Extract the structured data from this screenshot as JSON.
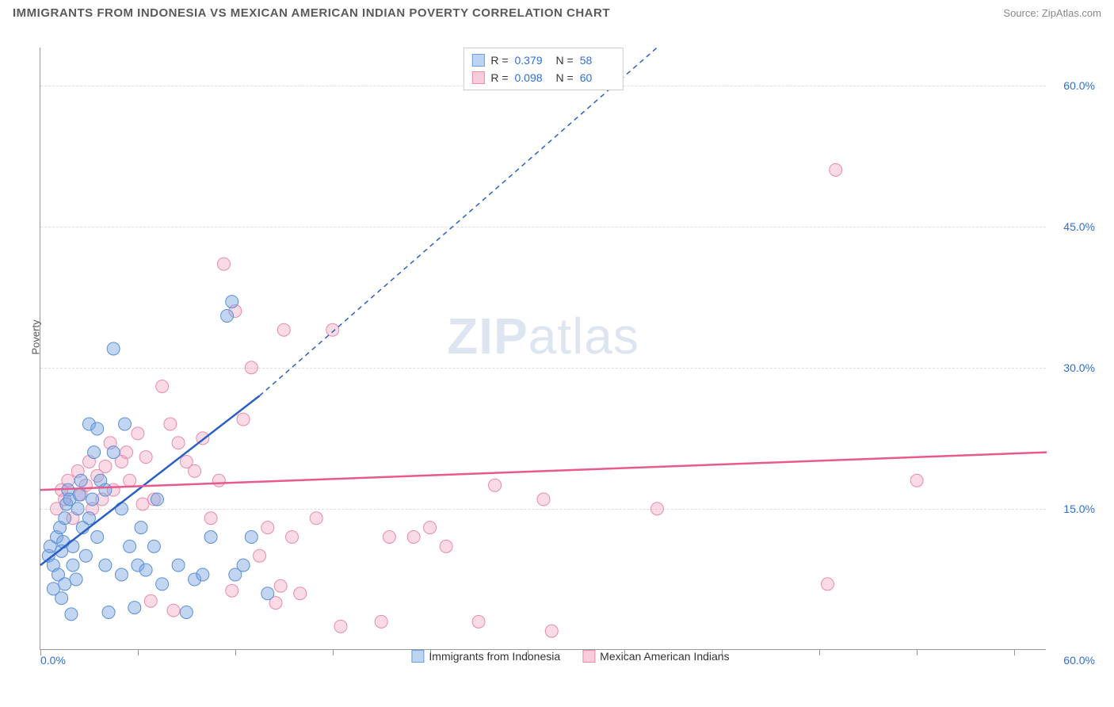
{
  "header": {
    "title": "IMMIGRANTS FROM INDONESIA VS MEXICAN AMERICAN INDIAN POVERTY CORRELATION CHART",
    "source_label": "Source:",
    "source_name": "ZipAtlas.com"
  },
  "watermark": {
    "zip": "ZIP",
    "atlas": "atlas"
  },
  "axes": {
    "ylabel": "Poverty",
    "xlim": [
      0,
      62
    ],
    "ylim": [
      0,
      64
    ],
    "y_ticks": [
      15,
      30,
      45,
      60
    ],
    "y_tick_labels": [
      "15.0%",
      "30.0%",
      "45.0%",
      "60.0%"
    ],
    "x_ticks": [
      0,
      6,
      12,
      18,
      24,
      30,
      36,
      42,
      48,
      54,
      60
    ],
    "x_min_label": "0.0%",
    "x_max_label": "60.0%",
    "grid_color": "#dddddd",
    "axis_color": "#999999"
  },
  "series": [
    {
      "id": "indonesia",
      "label": "Immigrants from Indonesia",
      "color_fill": "rgba(120,165,225,0.45)",
      "color_stroke": "#5a8fd8",
      "swatch_fill": "#bcd4f0",
      "swatch_border": "#6a9fe0",
      "r_label": "R =",
      "r_value": "0.379",
      "n_label": "N =",
      "n_value": "58",
      "marker_radius": 8,
      "trend": {
        "x1": 0,
        "y1": 9,
        "x2": 13.5,
        "y2": 27,
        "stroke": "#2a5fc8",
        "width": 2.5,
        "dash_x2": 38,
        "dash_y2": 64
      },
      "points": [
        [
          0.5,
          10
        ],
        [
          0.6,
          11
        ],
        [
          0.8,
          9
        ],
        [
          1.0,
          12
        ],
        [
          1.1,
          8
        ],
        [
          1.2,
          13
        ],
        [
          1.3,
          10.5
        ],
        [
          1.4,
          11.5
        ],
        [
          1.5,
          14
        ],
        [
          1.5,
          7
        ],
        [
          1.6,
          15.5
        ],
        [
          1.7,
          17
        ],
        [
          1.8,
          16
        ],
        [
          2,
          11
        ],
        [
          2,
          9
        ],
        [
          2.2,
          7.5
        ],
        [
          2.3,
          15
        ],
        [
          2.4,
          16.5
        ],
        [
          2.5,
          18
        ],
        [
          2.6,
          13
        ],
        [
          2.8,
          10
        ],
        [
          3,
          24
        ],
        [
          3,
          14
        ],
        [
          3.2,
          16
        ],
        [
          3.3,
          21
        ],
        [
          3.5,
          23.5
        ],
        [
          3.5,
          12
        ],
        [
          3.7,
          18
        ],
        [
          4,
          9
        ],
        [
          4,
          17
        ],
        [
          4.2,
          4
        ],
        [
          4.5,
          32
        ],
        [
          4.5,
          21
        ],
        [
          5,
          8
        ],
        [
          5,
          15
        ],
        [
          5.2,
          24
        ],
        [
          5.5,
          11
        ],
        [
          5.8,
          4.5
        ],
        [
          6,
          9
        ],
        [
          6.2,
          13
        ],
        [
          6.5,
          8.5
        ],
        [
          7,
          11
        ],
        [
          7.2,
          16
        ],
        [
          7.5,
          7
        ],
        [
          8.5,
          9
        ],
        [
          9,
          4
        ],
        [
          9.5,
          7.5
        ],
        [
          10,
          8
        ],
        [
          10.5,
          12
        ],
        [
          11.5,
          35.5
        ],
        [
          11.8,
          37
        ],
        [
          12,
          8
        ],
        [
          12.5,
          9
        ],
        [
          13,
          12
        ],
        [
          14,
          6
        ],
        [
          0.8,
          6.5
        ],
        [
          1.3,
          5.5
        ],
        [
          1.9,
          3.8
        ]
      ]
    },
    {
      "id": "mexican",
      "label": "Mexican American Indians",
      "color_fill": "rgba(240,150,180,0.35)",
      "color_stroke": "#e88bae",
      "swatch_fill": "#f7cdd9",
      "swatch_border": "#e88bae",
      "r_label": "R =",
      "r_value": "0.098",
      "n_label": "N =",
      "n_value": "60",
      "marker_radius": 8,
      "trend": {
        "x1": 0,
        "y1": 17,
        "x2": 62,
        "y2": 21,
        "stroke": "#e85a8c",
        "width": 2.5
      },
      "points": [
        [
          1,
          15
        ],
        [
          1.3,
          17
        ],
        [
          1.5,
          16
        ],
        [
          1.7,
          18
        ],
        [
          2,
          14
        ],
        [
          2.3,
          19
        ],
        [
          2.5,
          16.5
        ],
        [
          2.8,
          17.5
        ],
        [
          3,
          20
        ],
        [
          3.2,
          15
        ],
        [
          3.5,
          18.5
        ],
        [
          3.8,
          16
        ],
        [
          4,
          19.5
        ],
        [
          4.3,
          22
        ],
        [
          4.5,
          17
        ],
        [
          5,
          20
        ],
        [
          5.3,
          21
        ],
        [
          5.5,
          18
        ],
        [
          6,
          23
        ],
        [
          6.3,
          15.5
        ],
        [
          6.5,
          20.5
        ],
        [
          7,
          16
        ],
        [
          7.5,
          28
        ],
        [
          8,
          24
        ],
        [
          8.5,
          22
        ],
        [
          9,
          20
        ],
        [
          9.5,
          19
        ],
        [
          10,
          22.5
        ],
        [
          10.5,
          14
        ],
        [
          11,
          18
        ],
        [
          11.3,
          41
        ],
        [
          12,
          36
        ],
        [
          12.5,
          24.5
        ],
        [
          13,
          30
        ],
        [
          13.5,
          10
        ],
        [
          14,
          13
        ],
        [
          14.5,
          5
        ],
        [
          15,
          34
        ],
        [
          15.5,
          12
        ],
        [
          16,
          6
        ],
        [
          17,
          14
        ],
        [
          18,
          34
        ],
        [
          18.5,
          2.5
        ],
        [
          21,
          3
        ],
        [
          21.5,
          12
        ],
        [
          23,
          12
        ],
        [
          24,
          13
        ],
        [
          25,
          11
        ],
        [
          27,
          3
        ],
        [
          28,
          17.5
        ],
        [
          31,
          16
        ],
        [
          31.5,
          2
        ],
        [
          38,
          15
        ],
        [
          48.5,
          7
        ],
        [
          49,
          51
        ],
        [
          54,
          18
        ],
        [
          8.2,
          4.2
        ],
        [
          6.8,
          5.2
        ],
        [
          11.8,
          6.3
        ],
        [
          14.8,
          6.8
        ]
      ]
    }
  ],
  "colors": {
    "title_color": "#5a5a5a",
    "source_color": "#888888",
    "tick_label_color": "#2e6fd9",
    "background": "#ffffff"
  }
}
